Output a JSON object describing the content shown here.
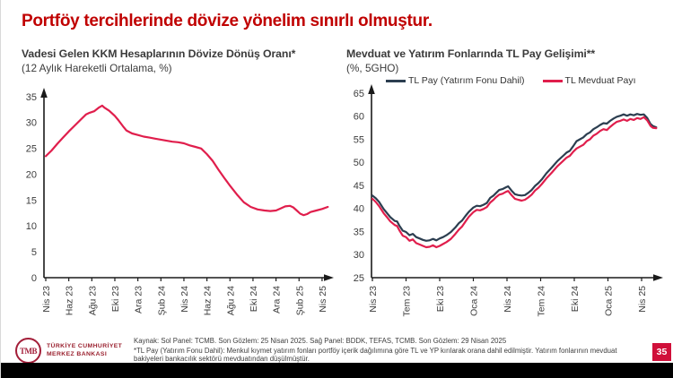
{
  "slide": {
    "title": "Portföy tercihlerinde dövize yönelim sınırlı olmuştur.",
    "page_number": "35",
    "colors": {
      "title_red": "#C00000",
      "line_red": "#E01E4C",
      "line_navy": "#2C3E50",
      "badge_red": "#D0103A",
      "logo_red": "#9A212F",
      "axis_black": "#1a1a1a"
    }
  },
  "footer": {
    "source": "Kaynak: Sol Panel: TCMB. Son Gözlem: 25 Nisan 2025. Sağ Panel: BDDK, TEFAS, TCMB. Son Gözlem: 29 Nisan 2025",
    "footnote": "*TL Pay (Yatırım Fonu Dahil): Menkul kıymet yatırım fonları portföy içerik dağılımına göre TL ve YP kırılarak orana dahil edilmiştir. Yatırım fonlarının mevduat bakiyeleri bankacılık sektörü mevduatından düşülmüştür.",
    "logo": {
      "monogram": "TMB",
      "line1": "TÜRKİYE CUMHURİYET",
      "line2": "MERKEZ BANKASI"
    }
  },
  "chart_data": [
    {
      "type": "line",
      "panel": "left",
      "title": "Vadesi Gelen KKM Hesaplarının Dövize Dönüş Oranı*",
      "subtitle": "(12 Aylık Hareketli Ortalama, %)",
      "xlabel": "",
      "ylabel": "",
      "grid": false,
      "legend_position": "none",
      "ylim": [
        0,
        35
      ],
      "yticks": [
        0,
        5,
        10,
        15,
        20,
        25,
        30,
        35
      ],
      "x_unit": "months since Nis 23",
      "x_ticks": [
        {
          "m": 0,
          "label": "Nis 23"
        },
        {
          "m": 2,
          "label": "Haz 23"
        },
        {
          "m": 4,
          "label": "Ağu 23"
        },
        {
          "m": 6,
          "label": "Eki 23"
        },
        {
          "m": 8,
          "label": "Ara 23"
        },
        {
          "m": 10,
          "label": "Şub 24"
        },
        {
          "m": 12,
          "label": "Nis 24"
        },
        {
          "m": 14,
          "label": "Haz 24"
        },
        {
          "m": 16,
          "label": "Ağu 24"
        },
        {
          "m": 18,
          "label": "Eki 24"
        },
        {
          "m": 20,
          "label": "Ara 24"
        },
        {
          "m": 22,
          "label": "Şub 25"
        },
        {
          "m": 24,
          "label": "Nis 25"
        }
      ],
      "series": [
        {
          "name": "KKM Dövize Dönüş Oranı",
          "color": "#E01E4C",
          "points": [
            [
              0,
              23.5
            ],
            [
              0.5,
              24.6
            ],
            [
              1,
              25.9
            ],
            [
              1.5,
              27.1
            ],
            [
              2,
              28.3
            ],
            [
              2.5,
              29.4
            ],
            [
              3,
              30.5
            ],
            [
              3.5,
              31.6
            ],
            [
              3.8,
              31.9
            ],
            [
              4.2,
              32.2
            ],
            [
              4.6,
              32.9
            ],
            [
              4.9,
              33.3
            ],
            [
              5.1,
              32.9
            ],
            [
              5.5,
              32.3
            ],
            [
              6,
              31.3
            ],
            [
              6.3,
              30.5
            ],
            [
              6.7,
              29.3
            ],
            [
              7,
              28.5
            ],
            [
              7.5,
              27.9
            ],
            [
              8,
              27.6
            ],
            [
              8.5,
              27.3
            ],
            [
              9,
              27.1
            ],
            [
              9.5,
              26.9
            ],
            [
              10,
              26.7
            ],
            [
              10.5,
              26.5
            ],
            [
              11,
              26.3
            ],
            [
              11.5,
              26.2
            ],
            [
              12,
              26.0
            ],
            [
              12.5,
              25.6
            ],
            [
              13,
              25.3
            ],
            [
              13.5,
              25.0
            ],
            [
              14,
              23.9
            ],
            [
              14.5,
              22.6
            ],
            [
              15,
              20.9
            ],
            [
              15.5,
              19.3
            ],
            [
              16,
              17.8
            ],
            [
              16.6,
              16.1
            ],
            [
              17.2,
              14.6
            ],
            [
              17.8,
              13.7
            ],
            [
              18.4,
              13.2
            ],
            [
              19,
              13.0
            ],
            [
              19.5,
              12.9
            ],
            [
              20,
              13.0
            ],
            [
              20.4,
              13.4
            ],
            [
              20.8,
              13.8
            ],
            [
              21.2,
              13.9
            ],
            [
              21.5,
              13.6
            ],
            [
              21.8,
              13.0
            ],
            [
              22.1,
              12.4
            ],
            [
              22.4,
              12.1
            ],
            [
              22.7,
              12.3
            ],
            [
              23,
              12.7
            ],
            [
              23.5,
              13.0
            ],
            [
              24,
              13.3
            ],
            [
              24.5,
              13.7
            ]
          ]
        }
      ]
    },
    {
      "type": "line",
      "panel": "right",
      "title": "Mevduat ve Yatırım Fonlarında TL Pay Gelişimi**",
      "subtitle": "(%, 5GHO)",
      "xlabel": "",
      "ylabel": "",
      "grid": false,
      "legend_position": "top",
      "ylim": [
        25,
        65
      ],
      "yticks": [
        25,
        30,
        35,
        40,
        45,
        50,
        55,
        60,
        65
      ],
      "x_unit": "months since Nis 23",
      "x_ticks": [
        {
          "m": 0,
          "label": "Nis 23"
        },
        {
          "m": 3,
          "label": "Tem 23"
        },
        {
          "m": 6,
          "label": "Eki 23"
        },
        {
          "m": 9,
          "label": "Oca 24"
        },
        {
          "m": 12,
          "label": "Nis 24"
        },
        {
          "m": 15,
          "label": "Tem 24"
        },
        {
          "m": 18,
          "label": "Eki 24"
        },
        {
          "m": 21,
          "label": "Oca 25"
        },
        {
          "m": 24,
          "label": "Nis 25"
        }
      ],
      "series": [
        {
          "name": "TL Pay (Yatırım Fonu Dahil)",
          "color": "#2C3E50",
          "points": [
            [
              0,
              42.8
            ],
            [
              0.3,
              42.2
            ],
            [
              0.6,
              41.4
            ],
            [
              1,
              39.9
            ],
            [
              1.3,
              39.0
            ],
            [
              1.6,
              38.1
            ],
            [
              2,
              37.3
            ],
            [
              2.2,
              37.2
            ],
            [
              2.4,
              36.3
            ],
            [
              2.7,
              35.2
            ],
            [
              3,
              34.9
            ],
            [
              3.3,
              34.2
            ],
            [
              3.6,
              34.5
            ],
            [
              3.9,
              33.8
            ],
            [
              4.2,
              33.5
            ],
            [
              4.5,
              33.2
            ],
            [
              4.8,
              33.0
            ],
            [
              5.1,
              33.1
            ],
            [
              5.4,
              33.4
            ],
            [
              5.7,
              33.1
            ],
            [
              6,
              33.5
            ],
            [
              6.3,
              33.8
            ],
            [
              6.6,
              34.2
            ],
            [
              7,
              34.9
            ],
            [
              7.4,
              35.9
            ],
            [
              7.7,
              36.8
            ],
            [
              8,
              37.4
            ],
            [
              8.3,
              38.4
            ],
            [
              8.6,
              39.3
            ],
            [
              9,
              40.2
            ],
            [
              9.3,
              40.6
            ],
            [
              9.6,
              40.5
            ],
            [
              9.9,
              40.8
            ],
            [
              10.2,
              41.2
            ],
            [
              10.5,
              42.3
            ],
            [
              10.8,
              42.8
            ],
            [
              11,
              43.3
            ],
            [
              11.3,
              44.0
            ],
            [
              11.6,
              44.2
            ],
            [
              11.9,
              44.6
            ],
            [
              12.1,
              44.8
            ],
            [
              12.4,
              43.9
            ],
            [
              12.7,
              43.1
            ],
            [
              13,
              42.9
            ],
            [
              13.3,
              42.8
            ],
            [
              13.6,
              42.9
            ],
            [
              13.9,
              43.4
            ],
            [
              14.2,
              44.0
            ],
            [
              14.5,
              44.9
            ],
            [
              14.8,
              45.5
            ],
            [
              15.1,
              46.3
            ],
            [
              15.5,
              47.6
            ],
            [
              16,
              48.9
            ],
            [
              16.5,
              50.3
            ],
            [
              17,
              51.4
            ],
            [
              17.3,
              52.1
            ],
            [
              17.6,
              52.5
            ],
            [
              17.9,
              53.5
            ],
            [
              18.2,
              54.6
            ],
            [
              18.5,
              55.0
            ],
            [
              18.8,
              55.4
            ],
            [
              19.1,
              56.1
            ],
            [
              19.4,
              56.5
            ],
            [
              19.7,
              57.2
            ],
            [
              20,
              57.6
            ],
            [
              20.3,
              58.1
            ],
            [
              20.6,
              58.5
            ],
            [
              20.9,
              58.4
            ],
            [
              21.2,
              59.0
            ],
            [
              21.5,
              59.5
            ],
            [
              21.8,
              59.9
            ],
            [
              22.1,
              60.1
            ],
            [
              22.4,
              60.4
            ],
            [
              22.7,
              60.1
            ],
            [
              23,
              60.4
            ],
            [
              23.3,
              60.2
            ],
            [
              23.6,
              60.5
            ],
            [
              23.9,
              60.3
            ],
            [
              24.2,
              60.4
            ],
            [
              24.5,
              59.6
            ],
            [
              24.8,
              58.3
            ],
            [
              25,
              57.9
            ],
            [
              25.3,
              57.6
            ]
          ]
        },
        {
          "name": "TL Mevduat Payı",
          "color": "#E01E4C",
          "points": [
            [
              0,
              42.1
            ],
            [
              0.3,
              41.4
            ],
            [
              0.6,
              40.5
            ],
            [
              1,
              39.0
            ],
            [
              1.3,
              38.1
            ],
            [
              1.6,
              37.2
            ],
            [
              2,
              36.4
            ],
            [
              2.2,
              36.2
            ],
            [
              2.4,
              35.3
            ],
            [
              2.7,
              34.1
            ],
            [
              3,
              33.8
            ],
            [
              3.3,
              33.0
            ],
            [
              3.6,
              33.3
            ],
            [
              3.9,
              32.5
            ],
            [
              4.2,
              32.2
            ],
            [
              4.5,
              31.9
            ],
            [
              4.8,
              31.6
            ],
            [
              5.1,
              31.7
            ],
            [
              5.4,
              32.0
            ],
            [
              5.7,
              31.6
            ],
            [
              6,
              31.9
            ],
            [
              6.3,
              32.3
            ],
            [
              6.6,
              32.7
            ],
            [
              7,
              33.4
            ],
            [
              7.4,
              34.5
            ],
            [
              7.7,
              35.4
            ],
            [
              8,
              36.1
            ],
            [
              8.3,
              37.2
            ],
            [
              8.6,
              38.2
            ],
            [
              9,
              39.2
            ],
            [
              9.3,
              39.7
            ],
            [
              9.6,
              39.6
            ],
            [
              9.9,
              39.9
            ],
            [
              10.2,
              40.3
            ],
            [
              10.5,
              41.3
            ],
            [
              10.8,
              41.9
            ],
            [
              11,
              42.4
            ],
            [
              11.3,
              43.0
            ],
            [
              11.6,
              43.2
            ],
            [
              11.9,
              43.6
            ],
            [
              12.1,
              43.8
            ],
            [
              12.4,
              42.9
            ],
            [
              12.7,
              42.1
            ],
            [
              13,
              41.9
            ],
            [
              13.3,
              41.7
            ],
            [
              13.6,
              41.9
            ],
            [
              13.9,
              42.4
            ],
            [
              14.2,
              43.0
            ],
            [
              14.5,
              43.9
            ],
            [
              14.8,
              44.5
            ],
            [
              15.1,
              45.3
            ],
            [
              15.5,
              46.5
            ],
            [
              16,
              47.8
            ],
            [
              16.5,
              49.2
            ],
            [
              17,
              50.3
            ],
            [
              17.3,
              51.0
            ],
            [
              17.6,
              51.4
            ],
            [
              17.9,
              52.3
            ],
            [
              18.2,
              53.0
            ],
            [
              18.5,
              53.4
            ],
            [
              18.8,
              53.8
            ],
            [
              19.1,
              54.6
            ],
            [
              19.4,
              55.0
            ],
            [
              19.7,
              55.8
            ],
            [
              20,
              56.2
            ],
            [
              20.3,
              56.8
            ],
            [
              20.6,
              57.2
            ],
            [
              20.9,
              57.0
            ],
            [
              21.2,
              57.7
            ],
            [
              21.5,
              58.3
            ],
            [
              21.8,
              58.8
            ],
            [
              22.1,
              59.0
            ],
            [
              22.4,
              59.3
            ],
            [
              22.7,
              59.0
            ],
            [
              23,
              59.4
            ],
            [
              23.3,
              59.2
            ],
            [
              23.6,
              59.6
            ],
            [
              23.9,
              59.4
            ],
            [
              24.2,
              59.8
            ],
            [
              24.5,
              59.1
            ],
            [
              24.8,
              57.9
            ],
            [
              25,
              57.5
            ],
            [
              25.3,
              57.4
            ]
          ]
        }
      ]
    }
  ]
}
